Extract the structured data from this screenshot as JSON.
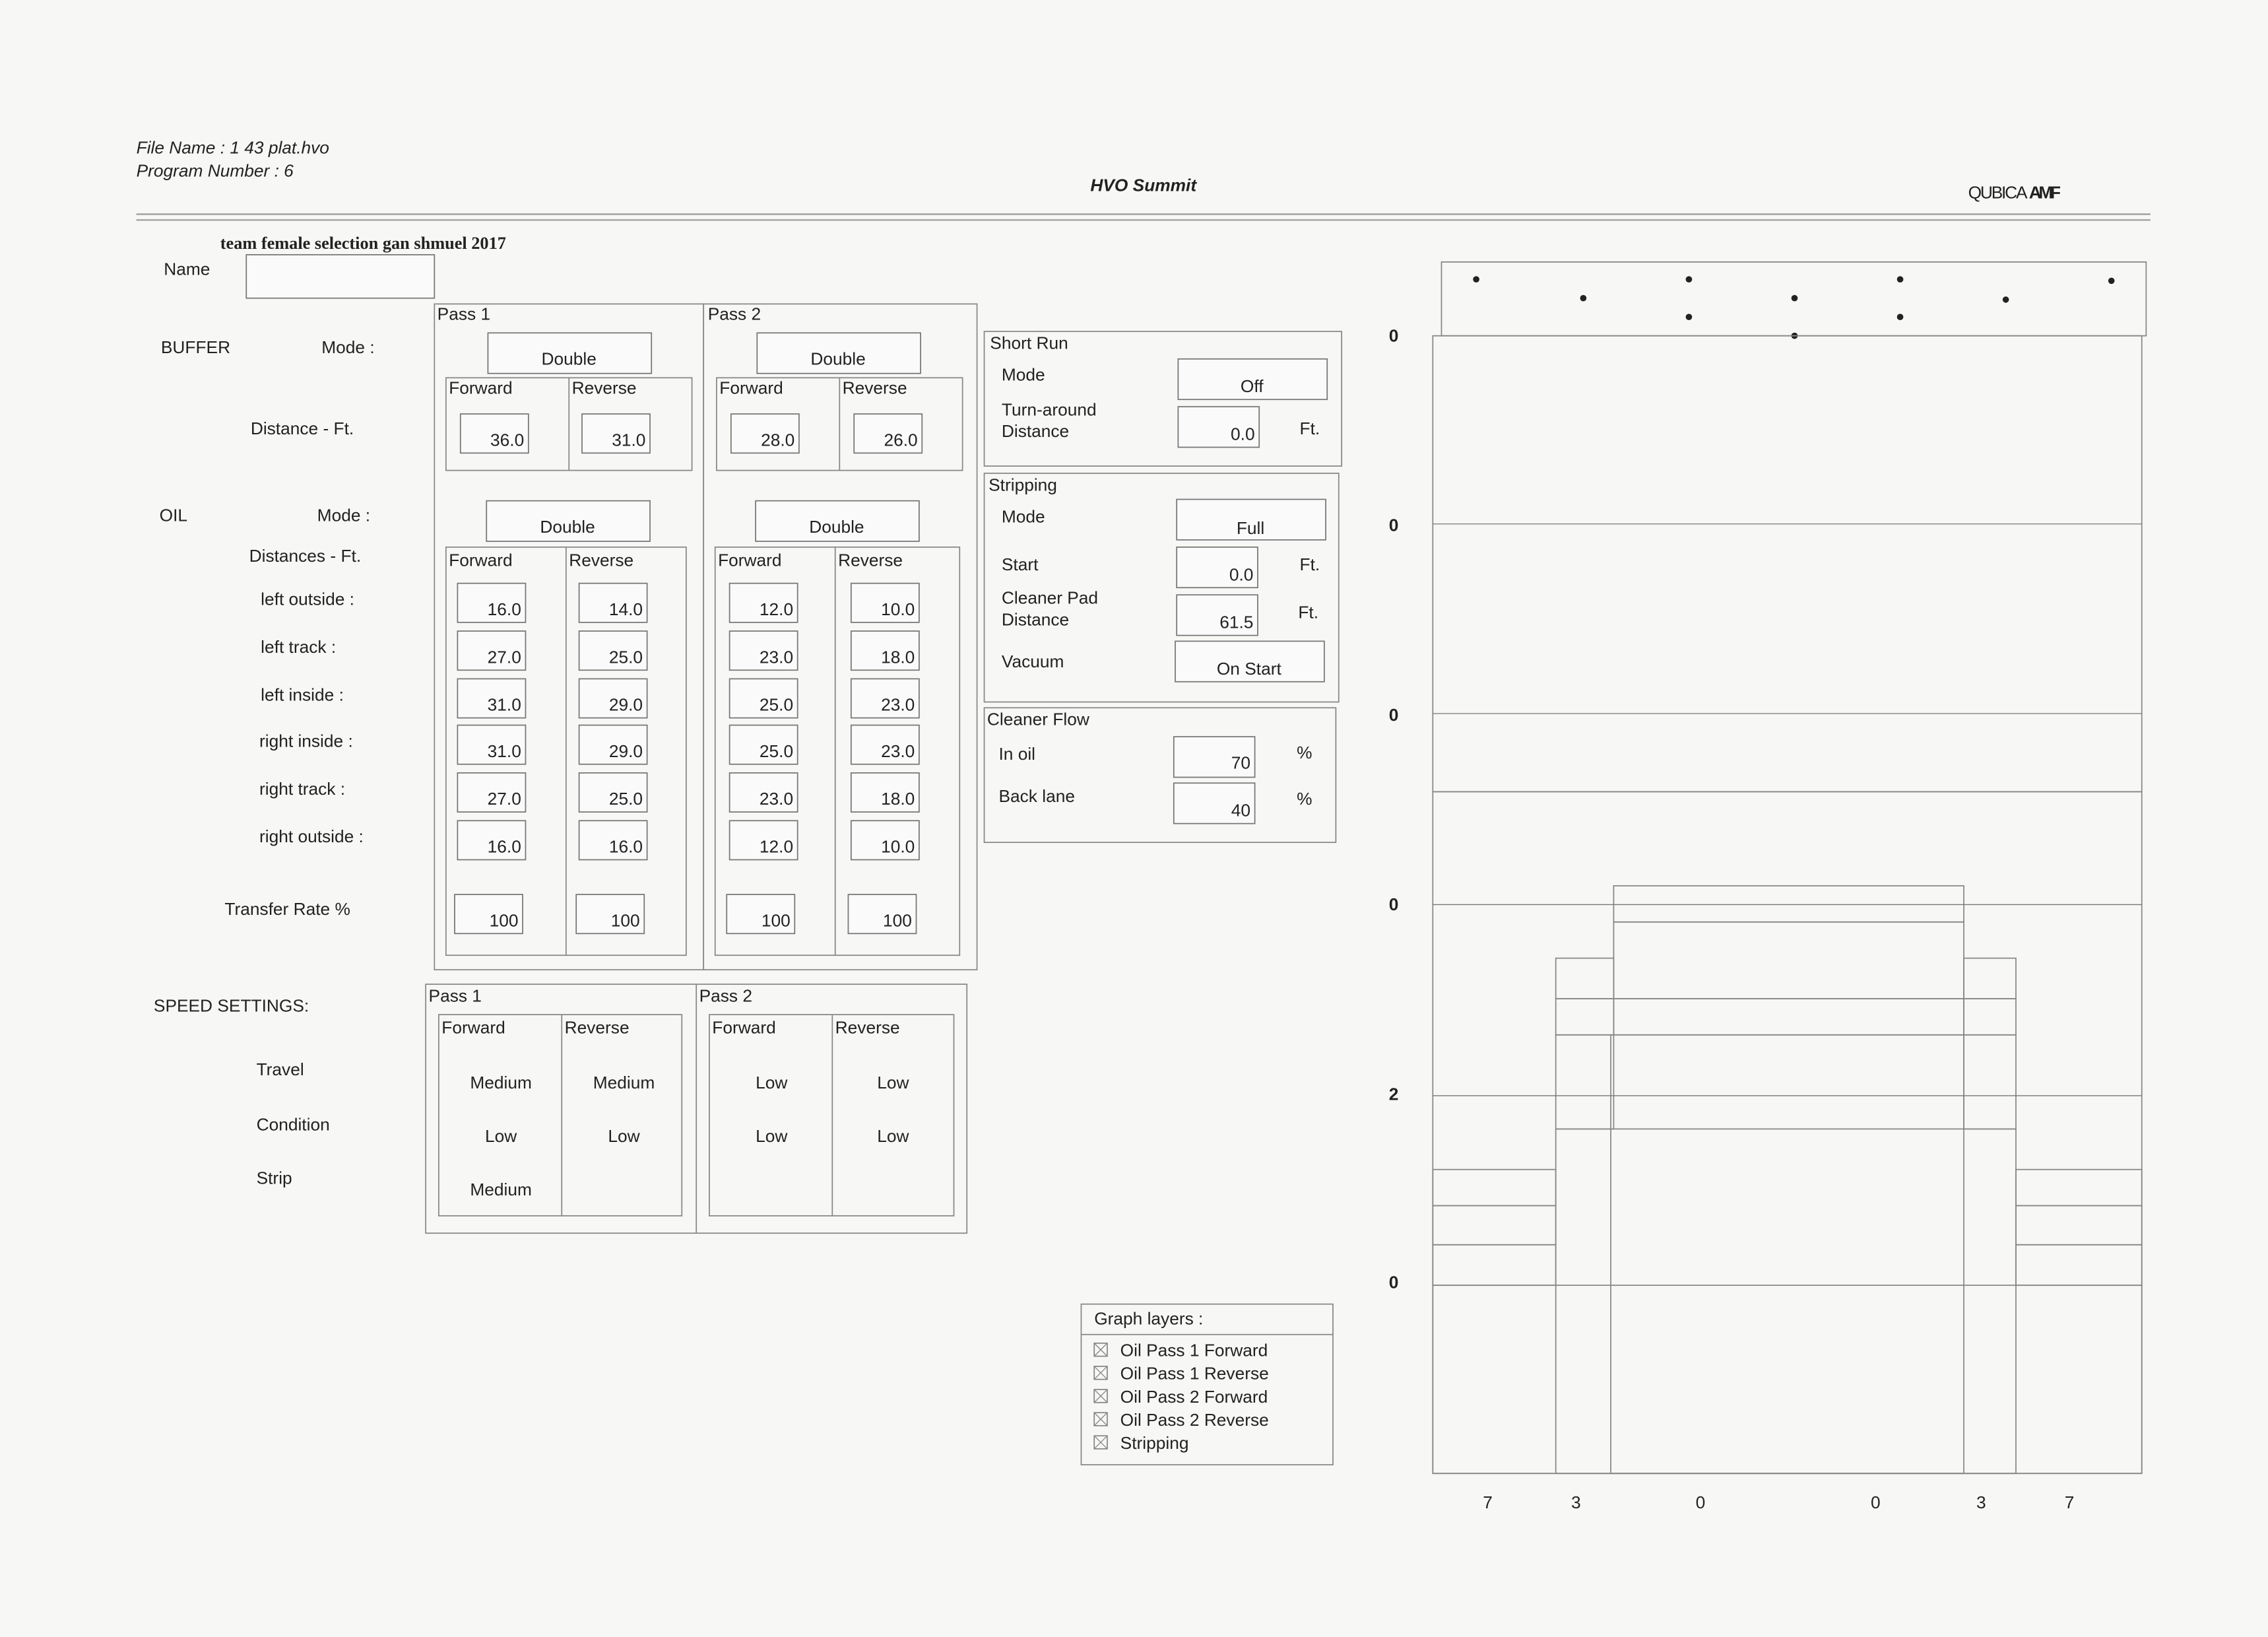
{
  "header": {
    "file_name": "File Name : 1 43 plat.hvo",
    "program_number": "Program Number : 6",
    "title": "HVO Summit",
    "logo": [
      "QUBICA",
      "AMF"
    ]
  },
  "handwritten_note": "team female selection gan shmuel 2017",
  "name_label": "Name",
  "passes": [
    "Pass 1",
    "Pass 2"
  ],
  "directions": [
    "Forward",
    "Reverse"
  ],
  "buffer": {
    "label": "BUFFER",
    "mode_label": "Mode :",
    "distance_label": "Distance - Ft.",
    "modes": [
      "Double",
      "Double"
    ],
    "distances": [
      [
        "36.0",
        "31.0"
      ],
      [
        "28.0",
        "26.0"
      ]
    ]
  },
  "oil": {
    "label": "OIL",
    "mode_label": "Mode :",
    "distances_label": "Distances - Ft.",
    "rows": [
      "left outside :",
      "left track :",
      "left inside :",
      "right inside :",
      "right track :",
      "right outside :"
    ],
    "modes": [
      "Double",
      "Double"
    ],
    "distances": [
      [
        [
          "16.0",
          "27.0",
          "31.0",
          "31.0",
          "27.0",
          "16.0"
        ],
        [
          "14.0",
          "25.0",
          "29.0",
          "29.0",
          "25.0",
          "16.0"
        ]
      ],
      [
        [
          "12.0",
          "23.0",
          "25.0",
          "25.0",
          "23.0",
          "12.0"
        ],
        [
          "10.0",
          "18.0",
          "23.0",
          "23.0",
          "18.0",
          "10.0"
        ]
      ]
    ],
    "transfer_rate_label": "Transfer Rate %",
    "transfer_rates": [
      [
        "100",
        "100"
      ],
      [
        "100",
        "100"
      ]
    ]
  },
  "speed": {
    "label": "SPEED SETTINGS:",
    "rows": [
      "Travel",
      "Condition",
      "Strip"
    ],
    "settings": [
      [
        [
          "Medium",
          "Low",
          "Medium"
        ],
        [
          "Medium",
          "Low"
        ]
      ],
      [
        [
          "Low",
          "Low"
        ],
        [
          "Low",
          "Low"
        ]
      ]
    ]
  },
  "short_run": {
    "title": "Short Run",
    "mode_label": "Mode",
    "mode": "Off",
    "turnaround_label": [
      "Turn-around",
      "Distance"
    ],
    "turnaround": "0.0",
    "unit": "Ft."
  },
  "stripping": {
    "title": "Stripping",
    "mode_label": "Mode",
    "mode": "Full",
    "start_label": "Start",
    "start": "0.0",
    "start_unit": "Ft.",
    "pad_label": [
      "Cleaner Pad",
      "Distance"
    ],
    "pad_distance": "61.5",
    "pad_unit": "Ft.",
    "vacuum_label": "Vacuum",
    "vacuum": "On Start"
  },
  "cleaner_flow": {
    "title": "Cleaner Flow",
    "in_oil_label": "In oil",
    "in_oil": "70",
    "in_oil_unit": "%",
    "back_lane_label": "Back lane",
    "back_lane": "40",
    "back_lane_unit": "%"
  },
  "graph_layers": {
    "title": "Graph layers :",
    "items": [
      "Oil Pass 1 Forward",
      "Oil Pass 1 Reverse",
      "Oil Pass 2 Forward",
      "Oil Pass 2 Reverse",
      "Stripping"
    ]
  },
  "graph": {
    "y_labels": [
      "0",
      "0",
      "0",
      "0",
      "2",
      "0"
    ],
    "x_labels": [
      "7",
      "3",
      "0",
      "0",
      "3",
      "7"
    ]
  }
}
